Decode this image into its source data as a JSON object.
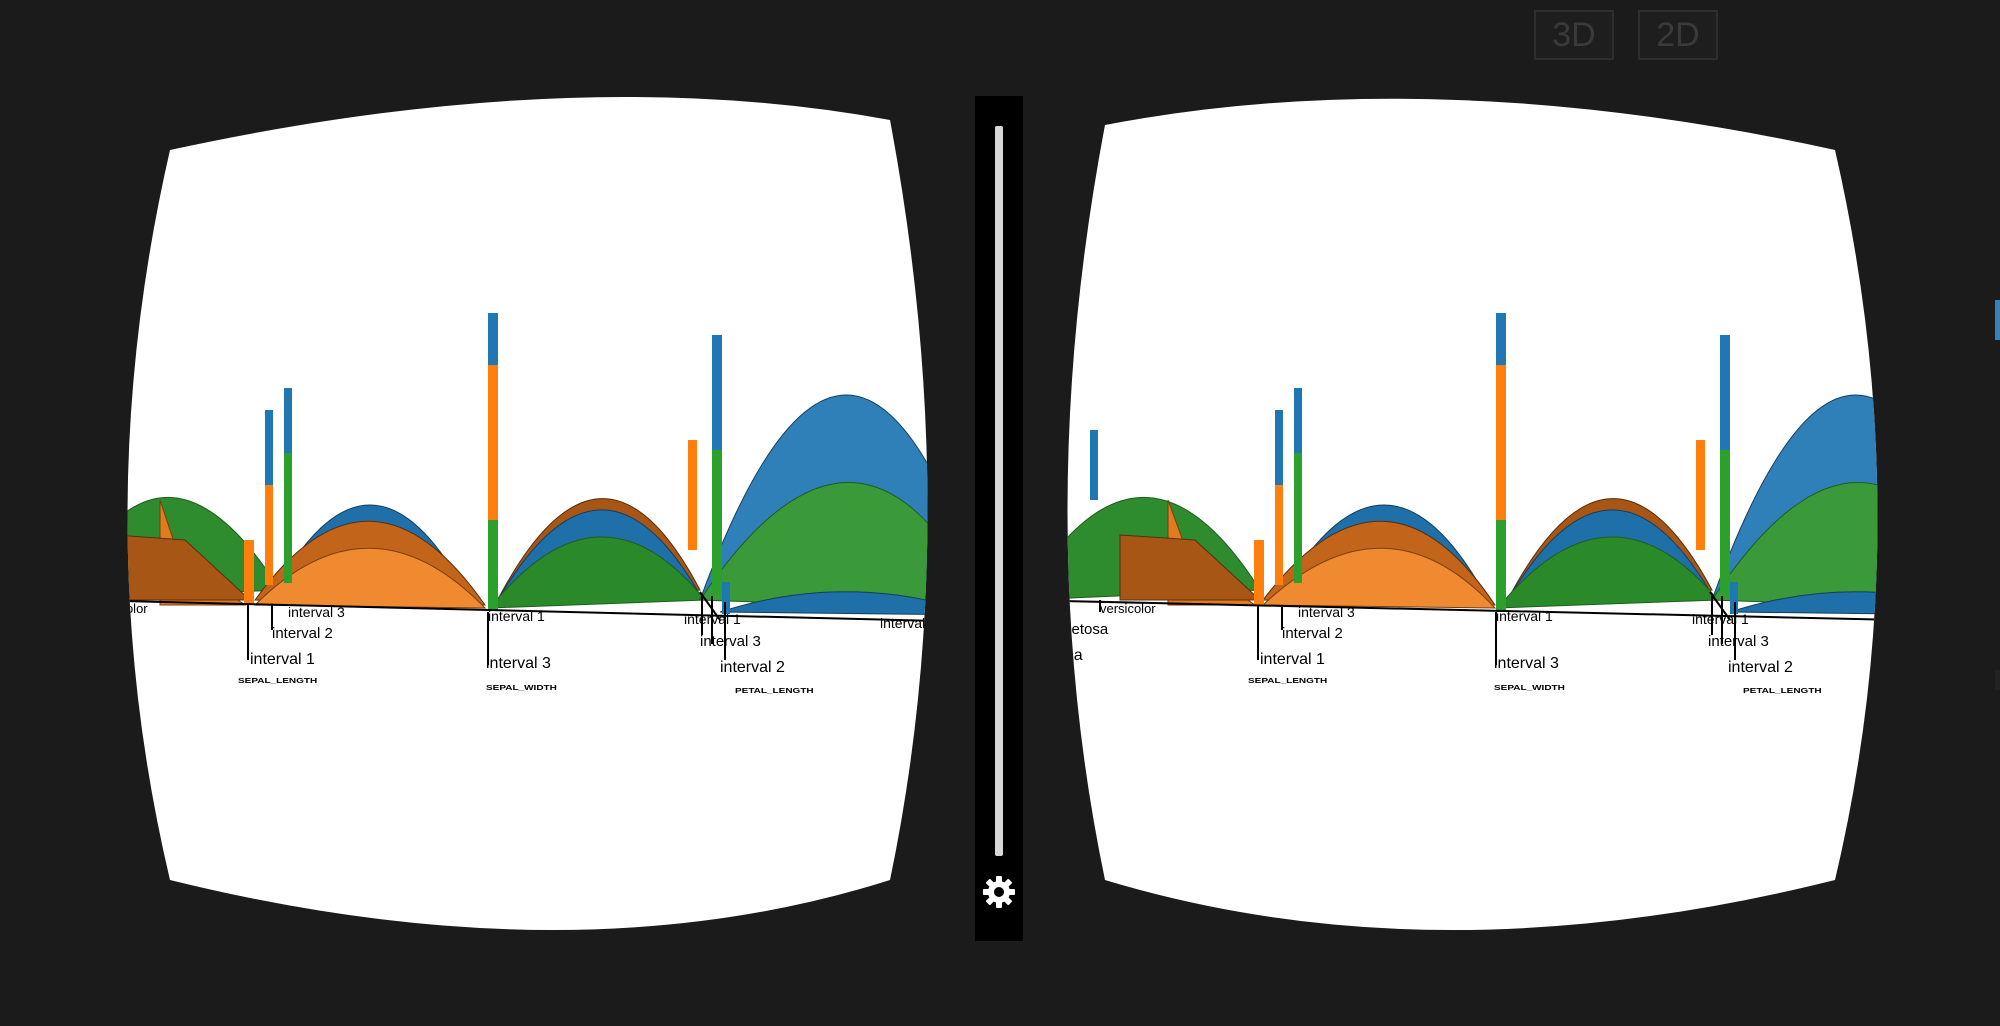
{
  "buttons": {
    "mode_3d": "3D",
    "mode_2d": "2D"
  },
  "colors": {
    "background": "#1b1b1b",
    "blue": "#1f77b4",
    "orange": "#ff7f0e",
    "green": "#2ca02c"
  },
  "labels": {
    "setosa": "setosa",
    "setosa_cut": "sa",
    "versicolor": "versicolor",
    "virginica": "virginica",
    "interval_1": "interval 1",
    "interval_2": "interval 2",
    "interval_3": "interval 3",
    "inter_cut": "inter",
    "interv_cut": "interv",
    "sepal_length": "SEPAL_LENGTH",
    "sepal_width": "SEPAL_WIDTH",
    "petal_length": "PETAL_LENGTH"
  },
  "icons": {
    "settings": "gear-icon"
  }
}
